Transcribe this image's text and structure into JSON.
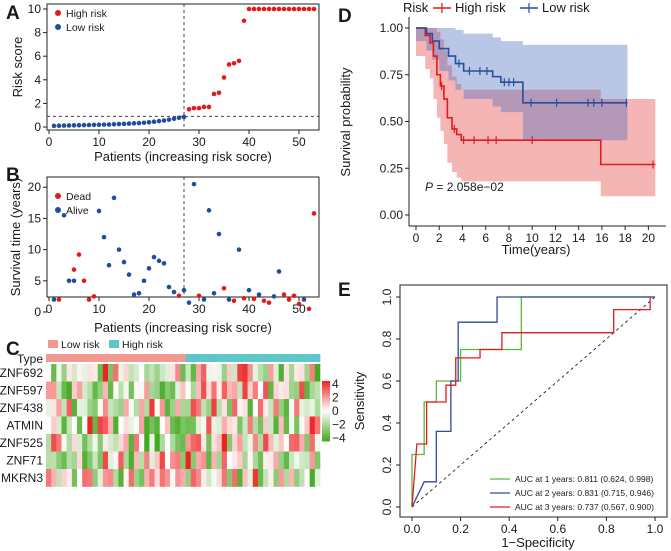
{
  "chart_data": [
    {
      "panel": "A",
      "type": "scatter",
      "xlabel": "Patients (increasing risk socre)",
      "ylabel": "Risk score",
      "xlim": [
        0,
        54
      ],
      "ylim": [
        0,
        10
      ],
      "xticks": [
        0,
        10,
        20,
        30,
        40,
        50
      ],
      "yticks": [
        0,
        2,
        4,
        6,
        8,
        10
      ],
      "cutoff_x": 27,
      "cutoff_y": 0.9,
      "legend": [
        {
          "name": "High risk",
          "color": "#e31a1c"
        },
        {
          "name": "Low risk",
          "color": "#1f4e9e"
        }
      ],
      "series": [
        {
          "name": "Low risk",
          "x": [
            1,
            2,
            3,
            4,
            5,
            6,
            7,
            8,
            9,
            10,
            11,
            12,
            13,
            14,
            15,
            16,
            17,
            18,
            19,
            20,
            21,
            22,
            23,
            24,
            25,
            26,
            27
          ],
          "y": [
            0.1,
            0.11,
            0.12,
            0.13,
            0.14,
            0.15,
            0.16,
            0.17,
            0.18,
            0.19,
            0.2,
            0.21,
            0.23,
            0.25,
            0.27,
            0.29,
            0.31,
            0.33,
            0.36,
            0.4,
            0.45,
            0.5,
            0.55,
            0.62,
            0.7,
            0.78,
            0.85
          ]
        },
        {
          "name": "High risk",
          "x": [
            28,
            29,
            30,
            31,
            32,
            33,
            34,
            35,
            36,
            37,
            38,
            39,
            40,
            41,
            42,
            43,
            44,
            45,
            46,
            47,
            48,
            49,
            50,
            51,
            52,
            53
          ],
          "y": [
            1.5,
            1.6,
            1.6,
            1.7,
            1.7,
            2.8,
            2.9,
            4.2,
            5.3,
            5.4,
            5.6,
            9.0,
            10,
            10,
            10,
            10,
            10,
            10,
            10,
            10,
            10,
            10,
            10,
            10,
            10,
            10
          ]
        }
      ]
    },
    {
      "panel": "B",
      "type": "scatter",
      "xlabel": "Patients (increasing risk socre)",
      "ylabel": "Survival time (years)",
      "xlim": [
        0,
        54
      ],
      "ylim": [
        0,
        21
      ],
      "xticks": [
        0,
        10,
        20,
        30,
        40,
        50
      ],
      "yticks": [
        0,
        5,
        10,
        15,
        20
      ],
      "cutoff_x": 27,
      "legend": [
        {
          "name": "Dead",
          "color": "#e31a1c"
        },
        {
          "name": "Alive",
          "color": "#1f4e9e"
        }
      ],
      "series": [
        {
          "name": "Dead",
          "x": [
            2,
            5,
            6,
            7,
            8,
            9,
            26,
            30,
            35,
            37,
            39,
            41,
            43,
            44,
            47,
            48,
            49,
            50,
            52,
            53
          ],
          "y": [
            2.0,
            6.8,
            9.2,
            5.0,
            2.0,
            2.5,
            2.6,
            2.6,
            3.8,
            1.8,
            2.2,
            2.1,
            1.8,
            1.5,
            2.8,
            2.0,
            2.6,
            1.3,
            0.5,
            15.8
          ]
        },
        {
          "name": "Alive",
          "x": [
            1,
            3,
            4,
            5,
            10,
            11,
            12,
            13,
            14,
            15,
            16,
            17,
            18,
            19,
            20,
            21,
            22,
            23,
            24,
            25,
            27,
            28,
            29,
            31,
            32,
            33,
            34,
            36,
            38,
            40,
            42,
            45,
            46,
            51
          ],
          "y": [
            2.0,
            15.5,
            5.0,
            5.0,
            16.2,
            12.0,
            7.5,
            18.3,
            10.0,
            8.0,
            6.0,
            2.8,
            3.0,
            5.0,
            7.0,
            8.8,
            8.2,
            7.8,
            4.0,
            3.2,
            3.5,
            1.5,
            20.5,
            2.0,
            16.3,
            3.0,
            12.5,
            2.0,
            10.0,
            3.5,
            2.8,
            2.5,
            6.5,
            2.0
          ]
        }
      ]
    },
    {
      "panel": "C",
      "type": "heatmap",
      "annotation_label": "Type",
      "legend": [
        {
          "name": "Low risk",
          "color": "#f29a90"
        },
        {
          "name": "High risk",
          "color": "#5ec5c9"
        }
      ],
      "genes": [
        "ZNF692",
        "ZNF597",
        "ZNF438",
        "ATMIN",
        "ZNF525",
        "ZNF71",
        "MKRN3"
      ],
      "n_low": 27,
      "n_high": 26,
      "colorbar_ticks": [
        "4",
        "2",
        "0",
        "−2",
        "−4"
      ],
      "colors": {
        "high": "#ee2222",
        "mid": "#ffffff",
        "low": "#44aa22"
      }
    },
    {
      "panel": "D",
      "type": "line",
      "subtype": "kaplan-meier",
      "xlabel": "Time(years)",
      "ylabel": "Survival probability",
      "legend_title": "Risk",
      "xlim": [
        0,
        21
      ],
      "ylim": [
        0,
        1
      ],
      "xticks": [
        0,
        2,
        4,
        6,
        8,
        10,
        12,
        14,
        16,
        18,
        20
      ],
      "yticks": [
        "0.00",
        "0.25",
        "0.50",
        "0.75",
        "1.00"
      ],
      "p_label": "P",
      "p_value": " = 2.058e−02",
      "series": [
        {
          "name": "High risk",
          "color": "#e31a1c",
          "steps": [
            [
              0,
              1.0
            ],
            [
              0.8,
              0.96
            ],
            [
              1.2,
              0.92
            ],
            [
              1.5,
              0.85
            ],
            [
              1.8,
              0.75
            ],
            [
              2.1,
              0.69
            ],
            [
              2.4,
              0.62
            ],
            [
              2.7,
              0.52
            ],
            [
              3.1,
              0.46
            ],
            [
              3.5,
              0.43
            ],
            [
              3.9,
              0.4
            ],
            [
              10.0,
              0.4
            ],
            [
              15.9,
              0.27
            ],
            [
              20.6,
              0.27
            ]
          ],
          "censor_x": [
            2.2,
            3.3,
            4.1,
            5.0,
            6.2,
            6.9,
            10.0,
            20.4
          ],
          "ci_lower": [
            0.85,
            0.78,
            0.73,
            0.62,
            0.52,
            0.45,
            0.38,
            0.28,
            0.23,
            0.2,
            0.18,
            0.18,
            0.1,
            0.1
          ],
          "ci_upper": [
            1.0,
            1.0,
            1.0,
            1.0,
            0.98,
            0.94,
            0.88,
            0.8,
            0.74,
            0.7,
            0.67,
            0.67,
            0.62,
            0.62
          ]
        },
        {
          "name": "Low risk",
          "color": "#2a4d9b",
          "steps": [
            [
              0,
              1.0
            ],
            [
              0.9,
              0.97
            ],
            [
              1.4,
              0.93
            ],
            [
              2.0,
              0.89
            ],
            [
              2.8,
              0.85
            ],
            [
              3.4,
              0.81
            ],
            [
              4.1,
              0.77
            ],
            [
              6.6,
              0.74
            ],
            [
              7.3,
              0.71
            ],
            [
              9.2,
              0.6
            ],
            [
              18.2,
              0.6
            ]
          ],
          "censor_x": [
            3.7,
            4.6,
            5.5,
            6.1,
            7.6,
            8.0,
            8.4,
            9.9,
            12.1,
            14.8,
            15.3,
            16.0,
            18.1
          ],
          "ci_lower": [
            0.93,
            0.88,
            0.83,
            0.77,
            0.72,
            0.67,
            0.62,
            0.58,
            0.55,
            0.4,
            0.4
          ],
          "ci_upper": [
            1.0,
            1.0,
            1.0,
            1.0,
            1.0,
            0.99,
            0.97,
            0.95,
            0.93,
            0.91,
            0.91
          ]
        }
      ]
    },
    {
      "panel": "E",
      "type": "line",
      "subtype": "roc",
      "xlabel": "1−Specificity",
      "ylabel": "Sensitivity",
      "xlim": [
        0,
        1
      ],
      "ylim": [
        0,
        1
      ],
      "xticks": [
        "0.0",
        "0.2",
        "0.4",
        "0.6",
        "0.8",
        "1.0"
      ],
      "yticks": [
        "0.0",
        "0.2",
        "0.4",
        "0.6",
        "0.8",
        "1.0"
      ],
      "series": [
        {
          "name": "AUC at 1 years: 0.811 (0.624, 0.998)",
          "color": "#5cb83a",
          "points": [
            [
              0,
              0
            ],
            [
              0,
              0.25
            ],
            [
              0.05,
              0.25
            ],
            [
              0.05,
              0.5
            ],
            [
              0.1,
              0.5
            ],
            [
              0.1,
              0.6
            ],
            [
              0.2,
              0.6
            ],
            [
              0.2,
              0.75
            ],
            [
              0.45,
              0.75
            ],
            [
              0.45,
              1.0
            ],
            [
              1.0,
              1.0
            ]
          ]
        },
        {
          "name": "AUC at 2 years: 0.831 (0.715, 0.946)",
          "color": "#2a4d9b",
          "points": [
            [
              0,
              0
            ],
            [
              0.05,
              0.12
            ],
            [
              0.1,
              0.12
            ],
            [
              0.1,
              0.36
            ],
            [
              0.16,
              0.36
            ],
            [
              0.16,
              0.6
            ],
            [
              0.19,
              0.6
            ],
            [
              0.19,
              0.88
            ],
            [
              0.35,
              0.88
            ],
            [
              0.35,
              1.0
            ],
            [
              1.0,
              1.0
            ]
          ]
        },
        {
          "name": "AUC at 3 years: 0.737 (0.567, 0.900)",
          "color": "#e31a1c",
          "points": [
            [
              0,
              0
            ],
            [
              0.02,
              0.3
            ],
            [
              0.06,
              0.3
            ],
            [
              0.06,
              0.5
            ],
            [
              0.14,
              0.5
            ],
            [
              0.14,
              0.58
            ],
            [
              0.18,
              0.58
            ],
            [
              0.18,
              0.71
            ],
            [
              0.28,
              0.71
            ],
            [
              0.28,
              0.75
            ],
            [
              0.37,
              0.75
            ],
            [
              0.37,
              0.83
            ],
            [
              0.83,
              0.83
            ],
            [
              0.83,
              0.94
            ],
            [
              0.98,
              0.94
            ],
            [
              0.98,
              1.0
            ]
          ]
        }
      ]
    }
  ]
}
